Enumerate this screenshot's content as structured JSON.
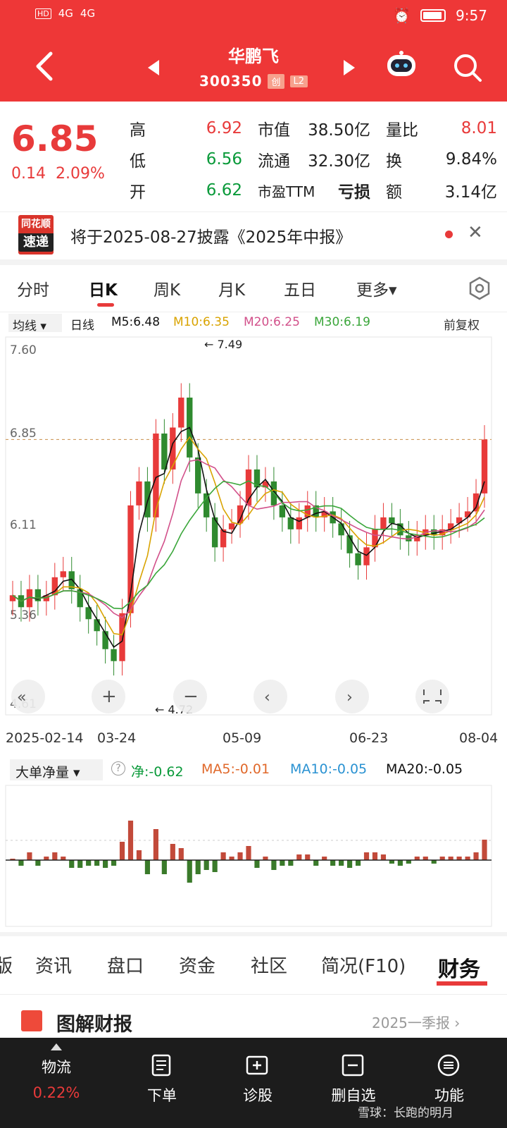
{
  "status": {
    "left_tags": [
      "HD",
      "4G",
      "4G"
    ],
    "time": "9:57"
  },
  "header": {
    "title": "华鹏飞",
    "code": "300350",
    "tag1": "创",
    "tag2": "L2"
  },
  "quote": {
    "price": "6.85",
    "change": "0.14",
    "change_pct": "2.09%",
    "high_label": "高",
    "high": "6.92",
    "low_label": "低",
    "low": "6.56",
    "open_label": "开",
    "open": "6.62",
    "mktcap_label": "市值",
    "mktcap": "38.50亿",
    "float_label": "流通",
    "float": "32.30亿",
    "pe_label": "市盈TTM",
    "pe": "亏损",
    "vol_ratio_label": "量比",
    "vol_ratio": "8.01",
    "turnover_label": "换",
    "turnover": "9.84%",
    "amount_label": "额",
    "amount": "3.14亿"
  },
  "news": {
    "logo_top": "同花顺",
    "logo_bottom": "速递",
    "text": "将于2025-08-27披露《2025年中报》"
  },
  "ktabs": [
    "分时",
    "日K",
    "周K",
    "月K",
    "五日",
    "更多▾"
  ],
  "ma": {
    "button": "均线 ▾",
    "period": "日线",
    "m5": "M5:6.48",
    "m10": "M10:6.35",
    "m20": "M20:6.25",
    "m30": "M30:6.19",
    "adjust": "前复权"
  },
  "chart_data": {
    "type": "candlestick",
    "y_labels": [
      "7.60",
      "6.85",
      "6.11",
      "5.36",
      "4.61"
    ],
    "max_label": "7.49",
    "min_label": "4.72",
    "x_labels": [
      "2025-02-14",
      "03-24",
      "05-09",
      "06-23",
      "08-04"
    ],
    "current_price": 6.85,
    "ylim": [
      4.61,
      7.6
    ],
    "close_approx": [
      5.55,
      5.45,
      5.6,
      5.5,
      5.55,
      5.7,
      5.75,
      5.6,
      5.45,
      5.35,
      5.25,
      5.1,
      5.0,
      5.4,
      6.3,
      6.5,
      6.2,
      6.9,
      6.6,
      6.95,
      7.2,
      6.7,
      6.4,
      6.2,
      5.95,
      6.1,
      6.15,
      6.3,
      6.6,
      6.45,
      6.5,
      6.3,
      6.2,
      6.1,
      6.2,
      6.3,
      6.2,
      6.25,
      6.15,
      6.05,
      5.9,
      5.8,
      5.95,
      6.1,
      6.2,
      6.15,
      6.05,
      6.0,
      6.05,
      6.1,
      6.05,
      6.1,
      6.15,
      6.2,
      6.25,
      6.4,
      6.85
    ]
  },
  "flow": {
    "button": "大单净量 ▾",
    "net": "净:-0.62",
    "ma5": "MA5:-0.01",
    "ma10": "MA10:-0.05",
    "ma20": "MA20:-0.05"
  },
  "bottom_tabs": [
    "资讯",
    "盘口",
    "资金",
    "社区",
    "简况(F10)",
    "财务"
  ],
  "report": {
    "title": "图解财报",
    "right": "2025一季报 ›"
  },
  "nav": [
    {
      "label": "物流",
      "sub": "0.22%"
    },
    {
      "label": "下单"
    },
    {
      "label": "诊股"
    },
    {
      "label": "删自选"
    },
    {
      "label": "功能"
    }
  ],
  "watermark": "雪球：长跑的明月"
}
